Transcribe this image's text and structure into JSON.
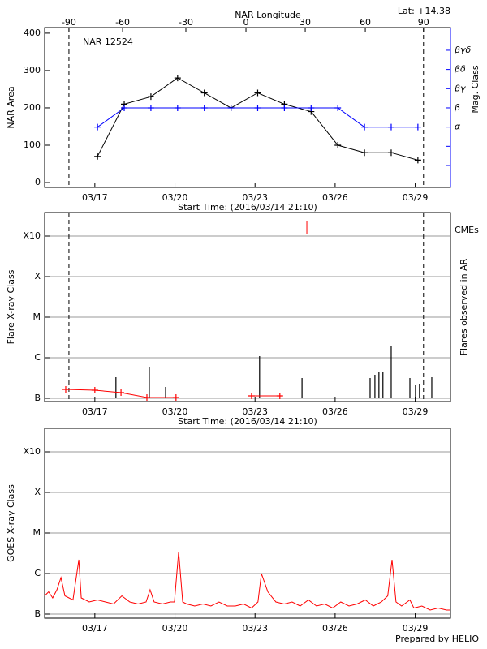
{
  "chart_data": [
    {
      "type": "line",
      "title": "NAR 12524",
      "subtitle": "Lat: +14.38",
      "top_axis_label": "NAR Longitude",
      "x_label": "Start Time: (2016/03/14 21:10)",
      "y_label": "NAR Area",
      "y2_label": "Mag. Class",
      "xlim": [
        15.12,
        30.32
      ],
      "xticks": [
        {
          "value": 17,
          "label": "03/17"
        },
        {
          "value": 20,
          "label": "03/20"
        },
        {
          "value": 23,
          "label": "03/23"
        },
        {
          "value": 26,
          "label": "03/26"
        },
        {
          "value": 29,
          "label": "03/29"
        }
      ],
      "ylim": [
        -13,
        415
      ],
      "yticks": [
        0,
        100,
        200,
        300,
        400
      ],
      "y2lim": [
        -1.14,
        7.18
      ],
      "y2ticks": [
        {
          "value": 0,
          "label": null
        },
        {
          "value": 1,
          "label": null
        },
        {
          "value": 2,
          "label": "α"
        },
        {
          "value": 3,
          "label": "β"
        },
        {
          "value": 4,
          "label": "βγ"
        },
        {
          "value": 5,
          "label": "βδ"
        },
        {
          "value": 6,
          "label": "βγδ"
        }
      ],
      "top_ticks": [
        {
          "value": -90,
          "x": 16.03
        },
        {
          "value": -60,
          "x": 18.04
        },
        {
          "value": -30,
          "x": 20.41
        },
        {
          "value": 0,
          "x": 22.66
        },
        {
          "value": 30,
          "x": 24.88
        },
        {
          "value": 60,
          "x": 27.13
        },
        {
          "value": 90,
          "x": 29.31
        }
      ],
      "dashed_x": [
        16.03,
        29.31
      ],
      "series": [
        {
          "color": "#000000",
          "marker": "+",
          "x": [
            17.1,
            18.1,
            19.1,
            20.1,
            21.1,
            22.1,
            23.1,
            24.1,
            25.1,
            26.1,
            27.1,
            28.1,
            29.1
          ],
          "values": [
            70,
            210,
            230,
            280,
            240,
            200,
            240,
            210,
            190,
            100,
            80,
            80,
            60
          ]
        },
        {
          "color": "#0000ff",
          "marker": "+",
          "axis": "y2",
          "x": [
            17.1,
            18.1,
            19.1,
            20.1,
            21.1,
            22.1,
            23.1,
            24.1,
            25.1,
            26.1,
            27.1,
            28.1,
            29.1
          ],
          "values": [
            2,
            3,
            3,
            3,
            3,
            3,
            3,
            3,
            3,
            3,
            2,
            2,
            2
          ]
        }
      ]
    },
    {
      "type": "bar",
      "x_label": "Start Time: (2016/03/14 21:10)",
      "y_label": "Flare X-ray Class",
      "y2_label": "Flares observed in AR",
      "xlim": [
        15.12,
        30.32
      ],
      "xticks": [
        {
          "value": 17,
          "label": "03/17"
        },
        {
          "value": 20,
          "label": "03/20"
        },
        {
          "value": 23,
          "label": "03/23"
        },
        {
          "value": 26,
          "label": "03/26"
        },
        {
          "value": 29,
          "label": "03/29"
        }
      ],
      "ylim": [
        -0.08,
        4.58
      ],
      "yticks": [
        {
          "value": 0,
          "label": "B"
        },
        {
          "value": 1,
          "label": "C"
        },
        {
          "value": 2,
          "label": "M"
        },
        {
          "value": 3,
          "label": "X"
        },
        {
          "value": 4,
          "label": "X10"
        }
      ],
      "grid": true,
      "dashed_x": [
        16.03,
        29.31
      ],
      "color": "#000000",
      "x": [
        17.79,
        19.04,
        19.65,
        23.17,
        24.76,
        27.31,
        27.49,
        27.64,
        27.79,
        28.1,
        28.8,
        29.01,
        29.16,
        29.62
      ],
      "values": [
        0.52,
        0.78,
        0.28,
        1.04,
        0.5,
        0.5,
        0.58,
        0.64,
        0.66,
        1.28,
        0.5,
        0.34,
        0.36,
        0.52
      ],
      "series": [
        {
          "name": "CMEs",
          "color": "#ff0000",
          "marker": "+",
          "x": [
            15.91,
            17.0,
            17.98,
            18.95,
            20.04,
            null,
            22.87,
            23.93
          ],
          "values": [
            0.22,
            0.2,
            0.14,
            0.02,
            0.02,
            null,
            0.06,
            0.06
          ]
        }
      ],
      "cme_marks": {
        "x": [
          24.94
        ],
        "low": [
          4.04
        ],
        "high": [
          4.38
        ]
      }
    },
    {
      "type": "line",
      "y_label": "GOES X-ray Class",
      "footer": "Prepared by HELIO",
      "xlim": [
        15.12,
        30.32
      ],
      "xticks": [
        {
          "value": 17,
          "label": "03/17"
        },
        {
          "value": 20,
          "label": "03/20"
        },
        {
          "value": 23,
          "label": "03/23"
        },
        {
          "value": 26,
          "label": "03/26"
        },
        {
          "value": 29,
          "label": "03/29"
        }
      ],
      "ylim": [
        -0.1,
        4.58
      ],
      "yticks": [
        {
          "value": 0,
          "label": "B"
        },
        {
          "value": 1,
          "label": "C"
        },
        {
          "value": 2,
          "label": "M"
        },
        {
          "value": 3,
          "label": "X"
        },
        {
          "value": 4,
          "label": "X10"
        }
      ],
      "grid": true,
      "series": [
        {
          "color": "#ff0000",
          "x": [
            15.12,
            15.27,
            15.42,
            15.58,
            15.73,
            15.88,
            16.18,
            16.4,
            16.49,
            16.79,
            17.1,
            17.4,
            17.7,
            18.01,
            18.31,
            18.62,
            18.92,
            19.07,
            19.22,
            19.53,
            19.83,
            19.98,
            20.14,
            20.29,
            20.44,
            20.74,
            21.05,
            21.35,
            21.65,
            21.96,
            22.26,
            22.57,
            22.87,
            23.11,
            23.24,
            23.48,
            23.78,
            24.09,
            24.39,
            24.69,
            25.0,
            25.3,
            25.61,
            25.91,
            26.21,
            26.52,
            26.82,
            27.13,
            27.43,
            27.73,
            27.97,
            28.13,
            28.28,
            28.49,
            28.8,
            28.95,
            29.25,
            29.56,
            29.86,
            30.17,
            30.3
          ],
          "values": [
            0.45,
            0.55,
            0.4,
            0.6,
            0.9,
            0.45,
            0.35,
            1.34,
            0.4,
            0.3,
            0.35,
            0.3,
            0.25,
            0.45,
            0.3,
            0.25,
            0.3,
            0.6,
            0.3,
            0.25,
            0.3,
            0.3,
            1.54,
            0.3,
            0.25,
            0.2,
            0.25,
            0.2,
            0.3,
            0.2,
            0.2,
            0.25,
            0.15,
            0.3,
            1.0,
            0.55,
            0.3,
            0.25,
            0.3,
            0.2,
            0.35,
            0.2,
            0.25,
            0.15,
            0.3,
            0.2,
            0.25,
            0.35,
            0.2,
            0.3,
            0.45,
            1.34,
            0.3,
            0.2,
            0.35,
            0.15,
            0.2,
            0.1,
            0.15,
            0.1,
            0.1
          ]
        }
      ]
    }
  ]
}
